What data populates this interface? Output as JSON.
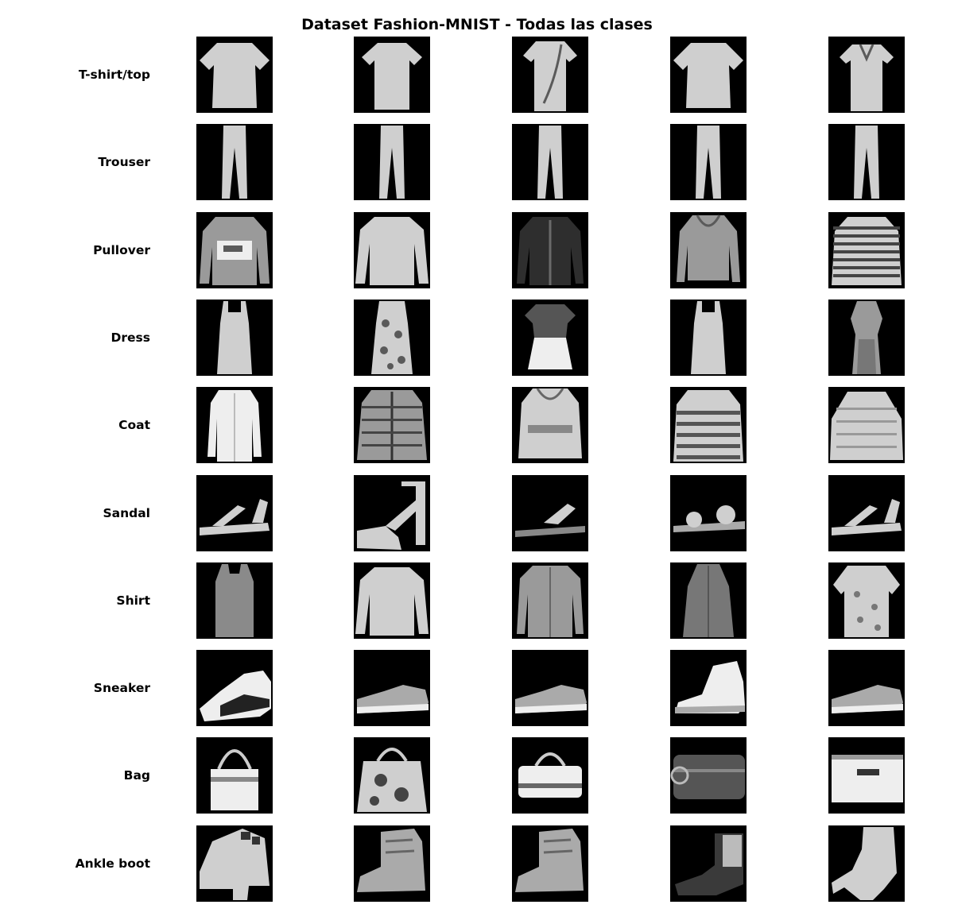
{
  "title": "Dataset Fashion-MNIST - Todas las clases",
  "rows": [
    {
      "label": "T-shirt/top",
      "items": [
        "tshirt-wide",
        "tshirt",
        "tshirt-strap",
        "tshirt-wide",
        "polo"
      ]
    },
    {
      "label": "Trouser",
      "items": [
        "trouser",
        "trouser",
        "trouser",
        "trouser",
        "trouser"
      ]
    },
    {
      "label": "Pullover",
      "items": [
        "pullover-print",
        "longsleeve",
        "jacket-dark",
        "hoodie",
        "pullover-stripes"
      ]
    },
    {
      "label": "Dress",
      "items": [
        "dress-slip",
        "dress-floral",
        "dress-skirt",
        "dress-slip",
        "dress-long"
      ]
    },
    {
      "label": "Coat",
      "items": [
        "coat",
        "coat-zip",
        "coat-hood",
        "coat-stripes",
        "coat-wide"
      ]
    },
    {
      "label": "Sandal",
      "items": [
        "sandal-low",
        "sandal-heel",
        "sandal-flat",
        "sandal-strap",
        "sandal-low"
      ]
    },
    {
      "label": "Shirt",
      "items": [
        "tank",
        "longsleeve",
        "shirt",
        "shirt-long",
        "shirt-print"
      ]
    },
    {
      "label": "Sneaker",
      "items": [
        "sneaker-high",
        "sneaker-low",
        "sneaker-low",
        "sneaker-hightop",
        "sneaker-low"
      ]
    },
    {
      "label": "Bag",
      "items": [
        "bag-handle",
        "bag-tote",
        "bag-duffel",
        "bag-clutch",
        "bag-box"
      ]
    },
    {
      "label": "Ankle boot",
      "items": [
        "boot-heel",
        "boot-lace",
        "boot-lace",
        "boot-chelsea",
        "boot-stiletto"
      ]
    }
  ]
}
